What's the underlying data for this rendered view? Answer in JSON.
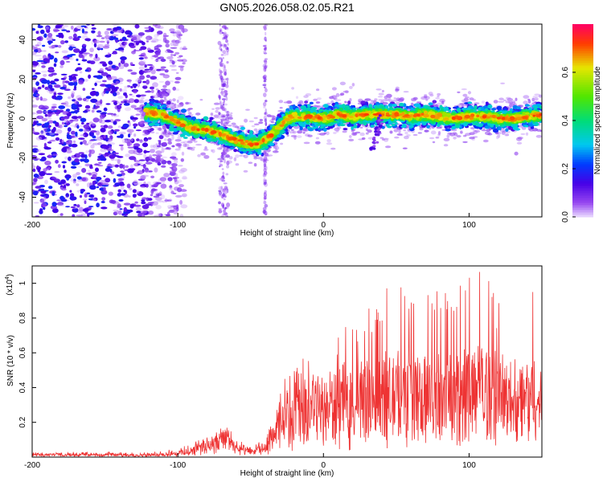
{
  "title": "GN05.2026.058.02.05.R21",
  "chart_data": [
    {
      "type": "heatmap",
      "title": "GN05.2026.058.02.05.R21",
      "xlabel": "Height of straight line (km)",
      "ylabel": "Frequency (Hz)",
      "xlim": [
        -200,
        150
      ],
      "ylim": [
        -50,
        48
      ],
      "xticks": [
        -200,
        -100,
        0,
        100
      ],
      "yticks": [
        -40,
        -20,
        0,
        20,
        40
      ],
      "colorbar": {
        "label": "Normalized spectral amplitude",
        "range": [
          0,
          0.8
        ],
        "ticks": [
          "0.0",
          "0.2",
          "0.4",
          "0.6"
        ]
      },
      "ridge": {
        "x": [
          -120,
          -110,
          -100,
          -90,
          -80,
          -70,
          -60,
          -50,
          -45,
          -40,
          -35,
          -30,
          -25,
          -20,
          -10,
          0,
          10,
          20,
          30,
          40,
          50,
          60,
          70,
          80,
          90,
          100,
          110,
          120,
          130,
          140,
          150
        ],
        "y": [
          3,
          2,
          -2,
          -5,
          -6,
          -8,
          -11,
          -13,
          -13,
          -11,
          -8,
          -4,
          0,
          1,
          1,
          0,
          2,
          1,
          2,
          2,
          2,
          1,
          2,
          1,
          0,
          1,
          1,
          0,
          0,
          1,
          2
        ]
      },
      "noise_region": {
        "x_from": -200,
        "x_to": -110,
        "amplitude_range": [
          0.0,
          0.2
        ]
      },
      "vertical_streaks_x": [
        -70,
        -67,
        -40
      ],
      "dip_feature": {
        "x": 40,
        "y_from": 2,
        "y_to": -16
      }
    },
    {
      "type": "line",
      "xlabel": "Height of straight line (km)",
      "ylabel": "SNR (10 * v/v)",
      "multiplier": "(x10",
      "multiplier_exp": "4",
      "multiplier_close": ")",
      "xlim": [
        -200,
        150
      ],
      "ylim": [
        0,
        1.1
      ],
      "xticks": [
        -200,
        -100,
        0,
        100
      ],
      "yticks": [
        0.2,
        0.4,
        0.6,
        0.8,
        1
      ],
      "series": [
        {
          "name": "SNR",
          "color": "#ee3333",
          "envelope": {
            "x": [
              -200,
              -120,
              -100,
              -90,
              -80,
              -70,
              -65,
              -60,
              -50,
              -40,
              -35,
              -30,
              -25,
              -20,
              -10,
              0,
              10,
              20,
              30,
              40,
              50,
              60,
              70,
              80,
              90,
              100,
              110,
              120,
              130,
              140,
              150
            ],
            "max": [
              0.03,
              0.03,
              0.05,
              0.08,
              0.12,
              0.16,
              0.18,
              0.1,
              0.07,
              0.1,
              0.25,
              0.38,
              0.48,
              0.52,
              0.62,
              0.6,
              0.72,
              0.78,
              0.85,
              0.92,
              1.1,
              0.95,
              1.0,
              0.97,
              1.05,
              1.05,
              1.1,
              0.9,
              0.95,
              1.05,
              0.85
            ],
            "mean": [
              0.015,
              0.012,
              0.02,
              0.04,
              0.06,
              0.09,
              0.1,
              0.05,
              0.03,
              0.05,
              0.12,
              0.18,
              0.22,
              0.25,
              0.28,
              0.27,
              0.3,
              0.32,
              0.33,
              0.34,
              0.36,
              0.35,
              0.36,
              0.34,
              0.35,
              0.36,
              0.37,
              0.33,
              0.32,
              0.34,
              0.3
            ]
          }
        }
      ]
    }
  ]
}
